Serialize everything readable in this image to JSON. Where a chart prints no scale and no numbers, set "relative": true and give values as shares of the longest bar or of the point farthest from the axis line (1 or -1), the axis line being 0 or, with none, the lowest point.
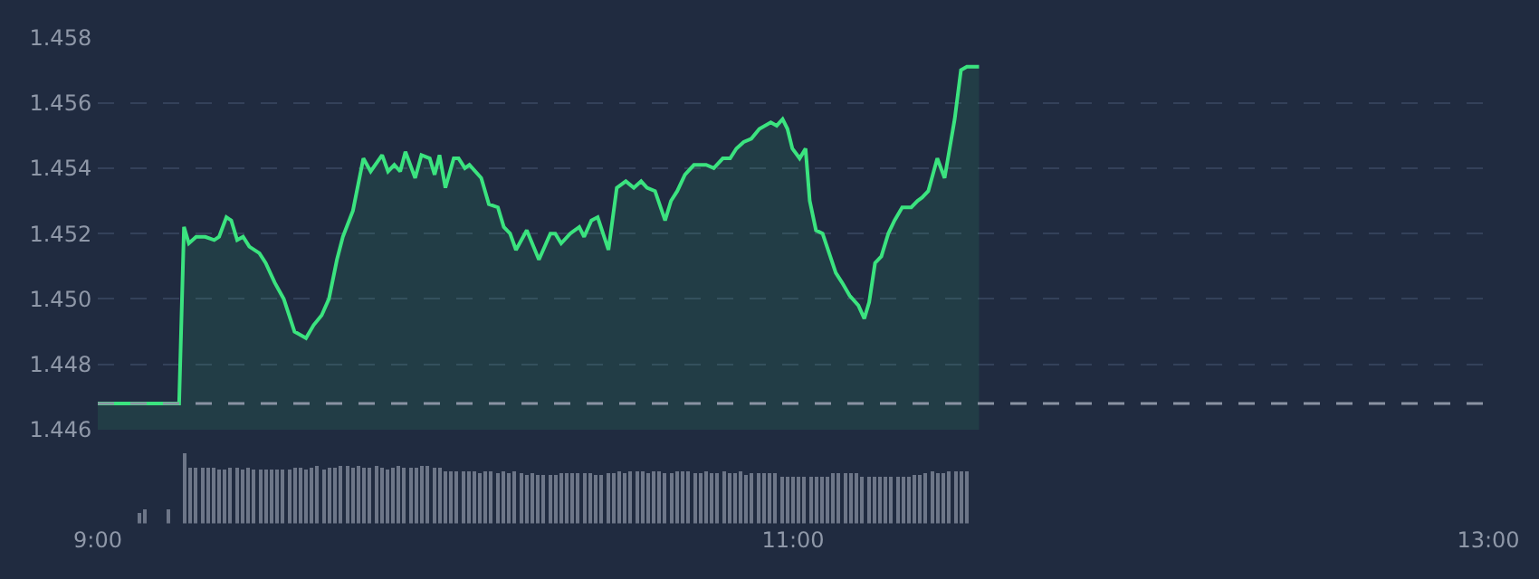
{
  "chart_data": [
    {
      "type": "area",
      "xlim": [
        9,
        13
      ],
      "ylim": [
        1.446,
        1.458
      ],
      "yticks": [
        1.446,
        1.448,
        {
          "value": 1.45,
          "label": "1.450"
        },
        1.452,
        1.454,
        1.456,
        1.458
      ],
      "grid": "y",
      "tick_labels": "y",
      "series": [
        {
          "color": "#3be37f",
          "x": [
            9.0,
            9.234,
            9.248,
            9.262,
            9.283,
            9.309,
            9.335,
            9.349,
            9.37,
            9.384,
            9.401,
            9.418,
            9.436,
            9.465,
            9.483,
            9.509,
            9.535,
            9.566,
            9.583,
            9.599,
            9.621,
            9.644,
            9.665,
            9.688,
            9.705,
            9.734,
            9.764,
            9.785,
            9.818,
            9.835,
            9.853,
            9.87,
            9.885,
            9.913,
            9.931,
            9.955,
            9.969,
            9.983,
            10.0,
            10.024,
            10.038,
            10.056,
            10.069,
            10.103,
            10.125,
            10.151,
            10.168,
            10.186,
            10.203,
            10.234,
            10.269,
            10.302,
            10.316,
            10.333,
            10.359,
            10.385,
            10.399,
            10.42,
            10.438,
            10.469,
            10.493,
            10.519,
            10.542,
            10.563,
            10.58,
            10.603,
            10.632,
            10.649,
            10.667,
            10.689,
            10.715,
            10.75,
            10.772,
            10.798,
            10.819,
            10.837,
            10.858,
            10.88,
            10.903,
            10.936,
            10.953,
            10.97,
            10.984,
            10.998,
            11.019,
            11.036,
            11.048,
            11.066,
            11.085,
            11.123,
            11.141,
            11.163,
            11.188,
            11.205,
            11.219,
            11.236,
            11.254,
            11.274,
            11.292,
            11.314,
            11.34,
            11.358,
            11.371,
            11.389,
            11.415,
            11.436,
            11.465,
            11.483,
            11.5,
            11.535
          ],
          "values": [
            1.4468,
            1.4468,
            1.4522,
            1.4517,
            1.4519,
            1.4519,
            1.4518,
            1.4519,
            1.4525,
            1.4524,
            1.4518,
            1.4519,
            1.4516,
            1.4514,
            1.4511,
            1.4505,
            1.45,
            1.449,
            1.4489,
            1.4488,
            1.4492,
            1.4495,
            1.45,
            1.4512,
            1.4519,
            1.4527,
            1.4543,
            1.4539,
            1.4544,
            1.4539,
            1.4541,
            1.4539,
            1.4545,
            1.4537,
            1.4544,
            1.4543,
            1.4538,
            1.4544,
            1.4534,
            1.4543,
            1.4543,
            1.454,
            1.4541,
            1.4537,
            1.4529,
            1.4528,
            1.4522,
            1.452,
            1.4515,
            1.4521,
            1.4512,
            1.452,
            1.452,
            1.4517,
            1.452,
            1.4522,
            1.4519,
            1.4524,
            1.4525,
            1.4515,
            1.4534,
            1.4536,
            1.4534,
            1.4536,
            1.4534,
            1.4533,
            1.4524,
            1.453,
            1.4533,
            1.4538,
            1.4541,
            1.4541,
            1.454,
            1.4543,
            1.4543,
            1.4546,
            1.4548,
            1.4549,
            1.4552,
            1.4554,
            1.4553,
            1.4555,
            1.4552,
            1.4546,
            1.4543,
            1.4546,
            1.453,
            1.4521,
            1.452,
            1.4508,
            1.4505,
            1.4501,
            1.4498,
            1.4494,
            1.4499,
            1.4511,
            1.4513,
            1.452,
            1.4524,
            1.4528,
            1.4528,
            1.453,
            1.4531,
            1.4533,
            1.4543,
            1.4537,
            1.4555,
            1.457,
            1.4571,
            1.4571
          ]
        }
      ],
      "ref_lines": [
        {
          "axis": "y",
          "value": 1.4468,
          "color": "#8a93a3",
          "line_style": "dashed"
        }
      ]
    },
    {
      "type": "bar",
      "relative": true,
      "xlim": [
        9,
        13
      ],
      "xticks": [
        {
          "value": 9,
          "label": "9:00"
        },
        {
          "value": 11,
          "label": "11:00"
        },
        {
          "value": 13,
          "label": "13:00"
        }
      ],
      "tick_labels": "x",
      "series": [
        {
          "color": "#6d7688",
          "x": [
            9.118,
            9.135,
            9.201,
            9.25,
            9.267,
            9.283,
            9.3,
            9.317,
            9.333,
            9.35,
            9.367,
            9.383,
            9.4,
            9.417,
            9.433,
            9.45,
            9.467,
            9.483,
            9.5,
            9.517,
            9.533,
            9.55,
            9.567,
            9.583,
            9.6,
            9.617,
            9.633,
            9.65,
            9.667,
            9.683,
            9.7,
            9.717,
            9.733,
            9.75,
            9.767,
            9.783,
            9.8,
            9.817,
            9.833,
            9.85,
            9.867,
            9.883,
            9.9,
            9.917,
            9.933,
            9.95,
            9.967,
            9.983,
            10,
            10.017,
            10.033,
            10.05,
            10.067,
            10.083,
            10.1,
            10.117,
            10.133,
            10.15,
            10.167,
            10.183,
            10.2,
            10.217,
            10.233,
            10.25,
            10.267,
            10.283,
            10.3,
            10.317,
            10.333,
            10.35,
            10.367,
            10.383,
            10.4,
            10.417,
            10.433,
            10.45,
            10.467,
            10.483,
            10.5,
            10.517,
            10.533,
            10.55,
            10.567,
            10.583,
            10.6,
            10.617,
            10.633,
            10.65,
            10.667,
            10.683,
            10.7,
            10.717,
            10.733,
            10.75,
            10.767,
            10.783,
            10.8,
            10.817,
            10.833,
            10.85,
            10.867,
            10.883,
            10.9,
            10.917,
            10.933,
            10.95,
            10.967,
            10.983,
            11,
            11.017,
            11.033,
            11.05,
            11.067,
            11.083,
            11.1,
            11.117,
            11.133,
            11.15,
            11.167,
            11.183,
            11.2,
            11.217,
            11.233,
            11.25,
            11.267,
            11.283,
            11.3,
            11.317,
            11.333,
            11.35,
            11.367,
            11.383,
            11.4,
            11.417,
            11.433,
            11.45,
            11.467,
            11.483,
            11.5
          ],
          "values": [
            0.15,
            0.2,
            0.2,
            1.0,
            0.8,
            0.8,
            0.8,
            0.8,
            0.79,
            0.78,
            0.78,
            0.79,
            0.8,
            0.78,
            0.8,
            0.77,
            0.77,
            0.77,
            0.78,
            0.78,
            0.77,
            0.78,
            0.8,
            0.79,
            0.78,
            0.8,
            0.82,
            0.77,
            0.8,
            0.8,
            0.81,
            0.81,
            0.8,
            0.81,
            0.8,
            0.8,
            0.81,
            0.8,
            0.76,
            0.8,
            0.81,
            0.8,
            0.8,
            0.8,
            0.81,
            0.81,
            0.8,
            0.79,
            0.75,
            0.74,
            0.73,
            0.73,
            0.74,
            0.73,
            0.72,
            0.74,
            0.73,
            0.72,
            0.73,
            0.72,
            0.73,
            0.71,
            0.69,
            0.71,
            0.7,
            0.69,
            0.7,
            0.7,
            0.72,
            0.71,
            0.71,
            0.72,
            0.71,
            0.72,
            0.7,
            0.68,
            0.72,
            0.72,
            0.73,
            0.72,
            0.73,
            0.73,
            0.73,
            0.72,
            0.74,
            0.73,
            0.72,
            0.72,
            0.73,
            0.73,
            0.73,
            0.72,
            0.72,
            0.73,
            0.71,
            0.72,
            0.73,
            0.72,
            0.72,
            0.73,
            0.7,
            0.72,
            0.72,
            0.71,
            0.72,
            0.72,
            0.66,
            0.67,
            0.66,
            0.66,
            0.67,
            0.66,
            0.67,
            0.66,
            0.67,
            0.71,
            0.72,
            0.71,
            0.72,
            0.71,
            0.66,
            0.67,
            0.66,
            0.67,
            0.66,
            0.66,
            0.67,
            0.66,
            0.66,
            0.7,
            0.68,
            0.72,
            0.73,
            0.71,
            0.72,
            0.73,
            0.74,
            0.75,
            0.75
          ]
        }
      ]
    }
  ]
}
